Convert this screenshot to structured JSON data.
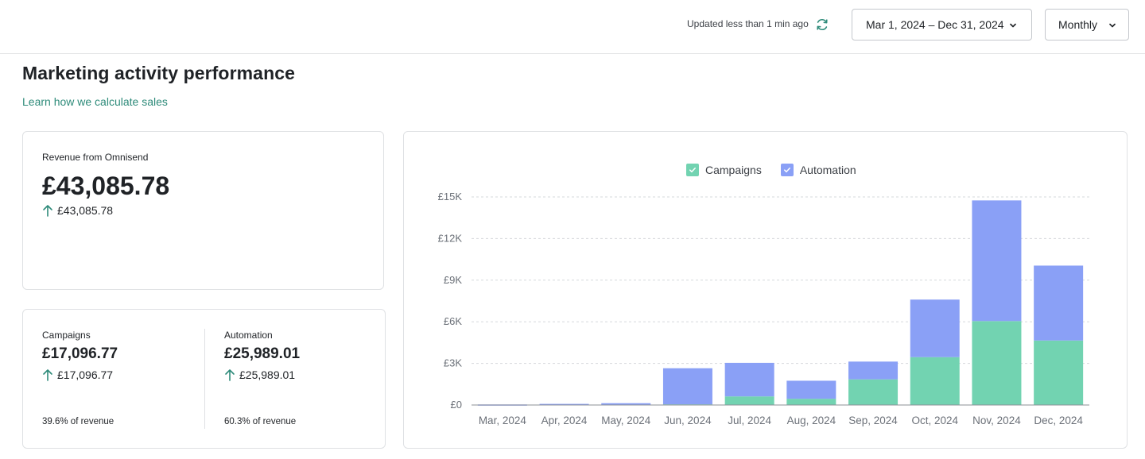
{
  "header": {
    "updated_text": "Updated less than 1 min ago",
    "refresh_icon": "refresh-icon",
    "date_range": "Mar 1, 2024 – Dec 31, 2024",
    "granularity": "Monthly"
  },
  "page": {
    "title": "Marketing activity performance",
    "learn_link": "Learn how we calculate sales"
  },
  "revenue": {
    "label": "Revenue from Omnisend",
    "value": "£43,085.78",
    "change": "£43,085.78"
  },
  "campaigns": {
    "label": "Campaigns",
    "value": "£17,096.77",
    "change": "£17,096.77",
    "share": "39.6% of revenue"
  },
  "automation": {
    "label": "Automation",
    "value": "£25,989.01",
    "change": "£25,989.01",
    "share": "60.3% of revenue"
  },
  "colors": {
    "campaigns": "#72d3b1",
    "automation": "#8aa0f6",
    "accent": "#2e8b7a"
  },
  "chart_data": {
    "type": "bar",
    "stacked": true,
    "categories": [
      "Mar, 2024",
      "Apr, 2024",
      "May, 2024",
      "Jun, 2024",
      "Jul, 2024",
      "Aug, 2024",
      "Sep, 2024",
      "Oct, 2024",
      "Nov, 2024",
      "Dec, 2024"
    ],
    "series": [
      {
        "name": "Campaigns",
        "values": [
          0,
          0,
          0,
          50,
          620,
          450,
          1850,
          3450,
          6050,
          4650
        ]
      },
      {
        "name": "Automation",
        "values": [
          40,
          80,
          130,
          2600,
          2420,
          1300,
          1280,
          4150,
          8700,
          5400
        ]
      }
    ],
    "yticks": [
      "£0",
      "£3K",
      "£6K",
      "£9K",
      "£12K",
      "£15K"
    ],
    "ylim": [
      0,
      15000
    ],
    "grid": true,
    "legend_position": "top-center"
  }
}
